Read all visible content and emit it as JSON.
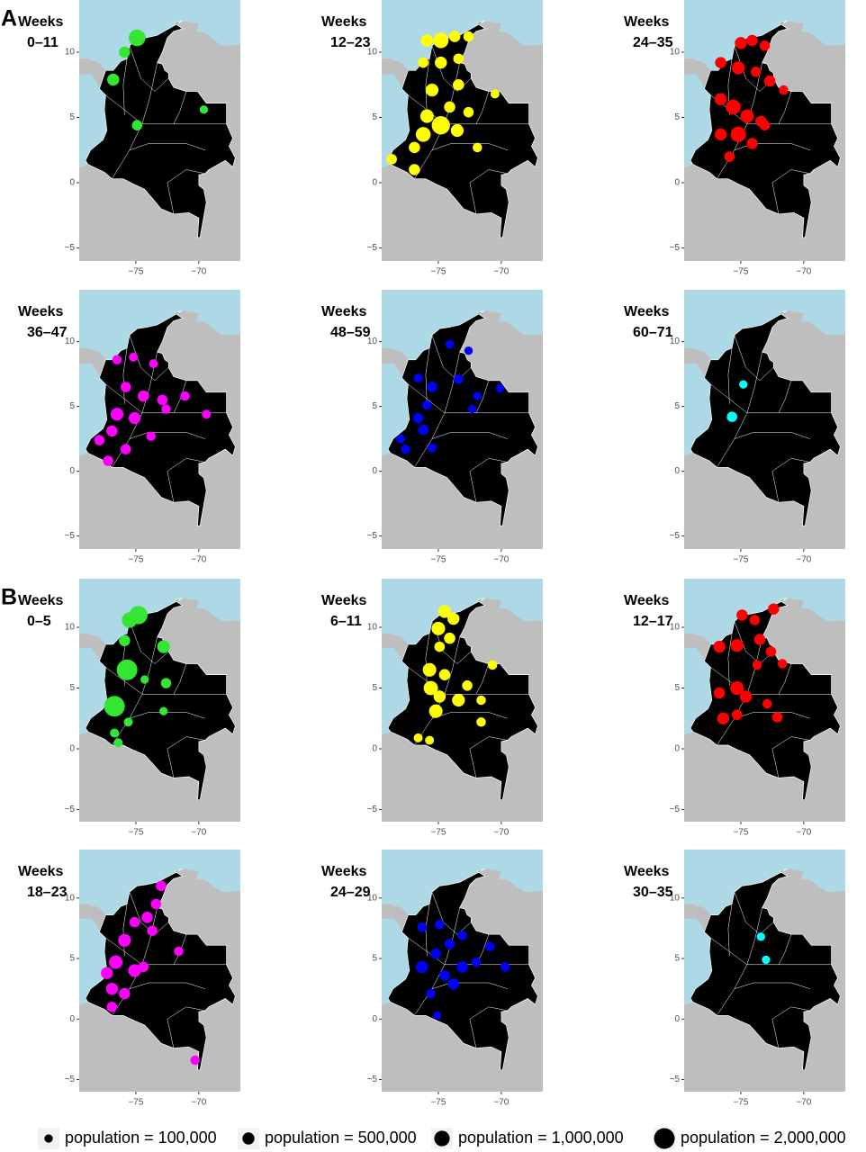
{
  "chart_data": [
    {
      "type": "bubble_map",
      "panel_label": "A",
      "title": "Weeks",
      "subtitle": "0–11",
      "color": "#33e633",
      "x": [
        -74.9,
        -75.9,
        -76.8,
        -74.9,
        -69.6
      ],
      "y": [
        11.1,
        10.0,
        7.9,
        4.4,
        5.6
      ],
      "sizes": [
        1200000,
        400000,
        500000,
        300000,
        100000
      ],
      "xlim": [
        -79.5,
        -66.7
      ],
      "ylim": [
        -6,
        14
      ],
      "xticks": [
        {
          "value": -75,
          "label": "−75"
        },
        {
          "value": -70,
          "label": "−70"
        }
      ],
      "yticks": [
        {
          "value": -5,
          "label": "−5"
        },
        0,
        5,
        10
      ]
    },
    {
      "type": "bubble_map",
      "title": "Weeks",
      "subtitle": "12–23",
      "color": "#ffff00",
      "x": [
        -74.8,
        -75.9,
        -73.7,
        -72.6,
        -76.2,
        -74.8,
        -73.4,
        -75.5,
        -73.4,
        -75.9,
        -74.8,
        -76.2,
        -76.9,
        -78.7,
        -76.9,
        -73.5,
        -71.9,
        -70.5,
        -72.6,
        -74.1
      ],
      "y": [
        10.9,
        10.9,
        11.2,
        11.2,
        9.2,
        9.2,
        9.5,
        7.1,
        7.5,
        5.1,
        4.4,
        3.7,
        2.7,
        1.8,
        1.0,
        4.0,
        2.7,
        6.8,
        5.4,
        5.8
      ],
      "sizes": [
        1000000,
        500000,
        400000,
        300000,
        300000,
        500000,
        300000,
        600000,
        400000,
        700000,
        1500000,
        900000,
        400000,
        300000,
        400000,
        600000,
        200000,
        150000,
        300000,
        400000
      ],
      "xlim": [
        -79.5,
        -66.7
      ],
      "ylim": [
        -6,
        14
      ],
      "xticks": [
        {
          "value": -75,
          "label": "−75"
        },
        {
          "value": -70,
          "label": "−70"
        }
      ],
      "yticks": [
        {
          "value": -5,
          "label": "−5"
        },
        0,
        5,
        10
      ]
    },
    {
      "type": "bubble_map",
      "title": "Weeks",
      "subtitle": "24–35",
      "color": "#ff0000",
      "x": [
        -75.0,
        -74.1,
        -73.1,
        -76.6,
        -75.2,
        -73.8,
        -72.7,
        -71.6,
        -76.6,
        -75.6,
        -74.5,
        -73.4,
        -75.2,
        -76.6,
        -75.9,
        -74.1,
        -73.1
      ],
      "y": [
        10.7,
        10.9,
        10.5,
        9.2,
        8.8,
        8.5,
        7.8,
        7.1,
        6.4,
        5.8,
        5.1,
        4.7,
        3.7,
        3.7,
        2.0,
        3.0,
        4.4
      ],
      "sizes": [
        500000,
        400000,
        300000,
        400000,
        600000,
        300000,
        400000,
        200000,
        500000,
        900000,
        700000,
        400000,
        1000000,
        500000,
        300000,
        400000,
        300000
      ],
      "xlim": [
        -79.5,
        -66.7
      ],
      "ylim": [
        -6,
        14
      ],
      "xticks": [
        {
          "value": -75,
          "label": "−75"
        },
        {
          "value": -70,
          "label": "−70"
        }
      ],
      "yticks": [
        {
          "value": -5,
          "label": "−5"
        },
        0,
        5,
        10
      ]
    },
    {
      "type": "bubble_map",
      "title": "Weeks",
      "subtitle": "36–47",
      "color": "#ff00ff",
      "x": [
        -76.5,
        -75.2,
        -73.6,
        -75.8,
        -74.4,
        -72.9,
        -71.1,
        -76.5,
        -75.1,
        -76.9,
        -77.9,
        -75.8,
        -77.2,
        -73.8,
        -69.4,
        -72.6
      ],
      "y": [
        8.6,
        8.8,
        8.3,
        6.5,
        5.8,
        5.5,
        5.8,
        4.4,
        4.1,
        3.1,
        2.4,
        1.7,
        0.8,
        2.7,
        4.4,
        4.8
      ],
      "sizes": [
        200000,
        150000,
        150000,
        300000,
        400000,
        300000,
        200000,
        600000,
        500000,
        400000,
        300000,
        300000,
        300000,
        200000,
        150000,
        200000
      ],
      "xlim": [
        -79.5,
        -66.7
      ],
      "ylim": [
        -6,
        14
      ],
      "xticks": [
        {
          "value": -75,
          "label": "−75"
        },
        {
          "value": -70,
          "label": "−70"
        }
      ],
      "yticks": [
        {
          "value": -5,
          "label": "−5"
        },
        0,
        5,
        10
      ]
    },
    {
      "type": "bubble_map",
      "title": "Weeks",
      "subtitle": "48–59",
      "color": "#0000ff",
      "x": [
        -74.1,
        -72.6,
        -76.6,
        -75.5,
        -73.4,
        -71.9,
        -75.9,
        -76.6,
        -76.2,
        -78.0,
        -75.5,
        -70.1,
        -72.3,
        -77.6
      ],
      "y": [
        9.8,
        9.3,
        7.2,
        6.5,
        7.1,
        5.8,
        5.1,
        4.1,
        3.2,
        2.5,
        1.8,
        6.4,
        4.8,
        1.7
      ],
      "sizes": [
        100000,
        100000,
        150000,
        300000,
        200000,
        100000,
        200000,
        300000,
        300000,
        150000,
        150000,
        100000,
        100000,
        150000
      ],
      "xlim": [
        -79.5,
        -66.7
      ],
      "ylim": [
        -6,
        14
      ],
      "xticks": [
        {
          "value": -75,
          "label": "−75"
        },
        {
          "value": -70,
          "label": "−70"
        }
      ],
      "yticks": [
        {
          "value": -5,
          "label": "−5"
        },
        0,
        5,
        10
      ]
    },
    {
      "type": "bubble_map",
      "title": "Weeks",
      "subtitle": "60–71",
      "color": "#00ffff",
      "x": [
        -74.8,
        -75.7
      ],
      "y": [
        6.7,
        4.2
      ],
      "sizes": [
        100000,
        300000
      ],
      "xlim": [
        -79.5,
        -66.7
      ],
      "ylim": [
        -6,
        14
      ],
      "xticks": [
        {
          "value": -75,
          "label": "−75"
        },
        {
          "value": -70,
          "label": "−70"
        }
      ],
      "yticks": [
        {
          "value": -5,
          "label": "−5"
        },
        0,
        5,
        10
      ]
    },
    {
      "type": "bubble_map",
      "panel_label": "B",
      "title": "Weeks",
      "subtitle": "0–5",
      "color": "#33e633",
      "x": [
        -74.8,
        -75.5,
        -75.9,
        -72.8,
        -75.7,
        -76.7,
        -72.6,
        -74.3,
        -72.8,
        -75.6,
        -76.7,
        -76.4
      ],
      "y": [
        11.0,
        10.6,
        8.9,
        8.4,
        6.5,
        3.5,
        5.4,
        5.7,
        3.1,
        2.2,
        1.3,
        0.5
      ],
      "sizes": [
        1500000,
        1000000,
        400000,
        600000,
        2000000,
        2000000,
        300000,
        100000,
        100000,
        150000,
        150000,
        150000
      ],
      "xlim": [
        -79.5,
        -66.7
      ],
      "ylim": [
        -6,
        14
      ],
      "xticks": [
        {
          "value": -75,
          "label": "−75"
        },
        {
          "value": -70,
          "label": "−70"
        }
      ],
      "yticks": [
        {
          "value": -5,
          "label": "−5"
        },
        0,
        5,
        10
      ]
    },
    {
      "type": "bubble_map",
      "title": "Weeks",
      "subtitle": "6–11",
      "color": "#ffff00",
      "x": [
        -74.5,
        -73.8,
        -75.0,
        -74.1,
        -74.9,
        -75.7,
        -74.5,
        -75.6,
        -74.9,
        -73.4,
        -75.2,
        -72.7,
        -71.6,
        -70.7,
        -71.6,
        -76.6,
        -75.7
      ],
      "y": [
        11.3,
        10.7,
        9.9,
        9.1,
        8.4,
        6.5,
        6.1,
        5.0,
        4.3,
        4.0,
        3.1,
        5.2,
        4.0,
        6.9,
        2.2,
        0.9,
        0.7
      ],
      "sizes": [
        600000,
        500000,
        700000,
        400000,
        300000,
        700000,
        400000,
        800000,
        500000,
        600000,
        700000,
        300000,
        200000,
        200000,
        200000,
        150000,
        150000
      ],
      "xlim": [
        -79.5,
        -66.7
      ],
      "ylim": [
        -6,
        14
      ],
      "xticks": [
        {
          "value": -75,
          "label": "−75"
        },
        {
          "value": -70,
          "label": "−70"
        }
      ],
      "yticks": [
        {
          "value": -5,
          "label": "−5"
        },
        0,
        5,
        10
      ]
    },
    {
      "type": "bubble_map",
      "title": "Weeks",
      "subtitle": "12–17",
      "color": "#ff0000",
      "x": [
        -74.9,
        -73.9,
        -72.4,
        -76.7,
        -75.3,
        -73.5,
        -72.6,
        -76.7,
        -75.3,
        -74.6,
        -76.4,
        -75.3,
        -72.9,
        -72.1,
        -71.7,
        -73.7
      ],
      "y": [
        11.0,
        10.6,
        11.5,
        8.4,
        8.5,
        9.0,
        8.0,
        4.6,
        5.0,
        4.3,
        2.5,
        2.8,
        3.7,
        2.6,
        7.0,
        6.9
      ],
      "sizes": [
        400000,
        300000,
        400000,
        500000,
        600000,
        400000,
        300000,
        400000,
        700000,
        500000,
        500000,
        300000,
        200000,
        300000,
        200000,
        200000
      ],
      "xlim": [
        -79.5,
        -66.7
      ],
      "ylim": [
        -6,
        14
      ],
      "xticks": [
        {
          "value": -75,
          "label": "−75"
        },
        {
          "value": -70,
          "label": "−70"
        }
      ],
      "yticks": [
        {
          "value": -5,
          "label": "−5"
        },
        0,
        5,
        10
      ]
    },
    {
      "type": "bubble_map",
      "title": "Weeks",
      "subtitle": "18–23",
      "color": "#ff00ff",
      "x": [
        -73.0,
        -73.4,
        -74.1,
        -75.1,
        -73.7,
        -75.9,
        -76.6,
        -75.1,
        -77.3,
        -76.9,
        -75.9,
        -74.4,
        -71.6,
        -76.9,
        -70.3
      ],
      "y": [
        11.0,
        9.5,
        8.4,
        8.0,
        7.3,
        6.5,
        4.7,
        4.0,
        3.8,
        2.5,
        2.1,
        4.3,
        5.6,
        1.0,
        -3.4
      ],
      "sizes": [
        300000,
        300000,
        400000,
        300000,
        300000,
        600000,
        700000,
        600000,
        500000,
        500000,
        400000,
        300000,
        200000,
        300000,
        200000
      ],
      "xlim": [
        -79.5,
        -66.7
      ],
      "ylim": [
        -6,
        14
      ],
      "xticks": [
        {
          "value": -75,
          "label": "−75"
        },
        {
          "value": -70,
          "label": "−70"
        }
      ],
      "yticks": [
        {
          "value": -5,
          "label": "−5"
        },
        0,
        5,
        10
      ]
    },
    {
      "type": "bubble_map",
      "title": "Weeks",
      "subtitle": "24–29",
      "color": "#0000ff",
      "x": [
        -74.9,
        -76.3,
        -73.1,
        -74.1,
        -75.2,
        -76.3,
        -73.1,
        -72.0,
        -70.9,
        -73.8,
        -75.6,
        -75.1,
        -69.7,
        -74.5
      ],
      "y": [
        7.8,
        7.6,
        6.9,
        6.2,
        5.4,
        4.3,
        4.3,
        4.7,
        6.0,
        2.9,
        2.1,
        0.3,
        4.3,
        3.6
      ],
      "sizes": [
        200000,
        200000,
        200000,
        300000,
        300000,
        500000,
        400000,
        200000,
        200000,
        400000,
        200000,
        100000,
        200000,
        300000
      ],
      "xlim": [
        -79.5,
        -66.7
      ],
      "ylim": [
        -6,
        14
      ],
      "xticks": [
        {
          "value": -75,
          "label": "−75"
        },
        {
          "value": -70,
          "label": "−70"
        }
      ],
      "yticks": [
        {
          "value": -5,
          "label": "−5"
        },
        0,
        5,
        10
      ]
    },
    {
      "type": "bubble_map",
      "title": "Weeks",
      "subtitle": "30–35",
      "color": "#00ffff",
      "x": [
        -73.4,
        -73.0
      ],
      "y": [
        6.8,
        4.9
      ],
      "sizes": [
        100000,
        100000
      ],
      "xlim": [
        -79.5,
        -66.7
      ],
      "ylim": [
        -6,
        14
      ],
      "xticks": [
        {
          "value": -75,
          "label": "−75"
        },
        {
          "value": -70,
          "label": "−70"
        }
      ],
      "yticks": [
        {
          "value": -5,
          "label": "−5"
        },
        0,
        5,
        10
      ]
    }
  ],
  "legend": {
    "entries": [
      {
        "label": "population = 100,000",
        "value": 100000
      },
      {
        "label": "population = 500,000",
        "value": 500000
      },
      {
        "label": "population = 1,000,000",
        "value": 1000000
      },
      {
        "label": "population = 2,000,000",
        "value": 2000000
      }
    ]
  }
}
